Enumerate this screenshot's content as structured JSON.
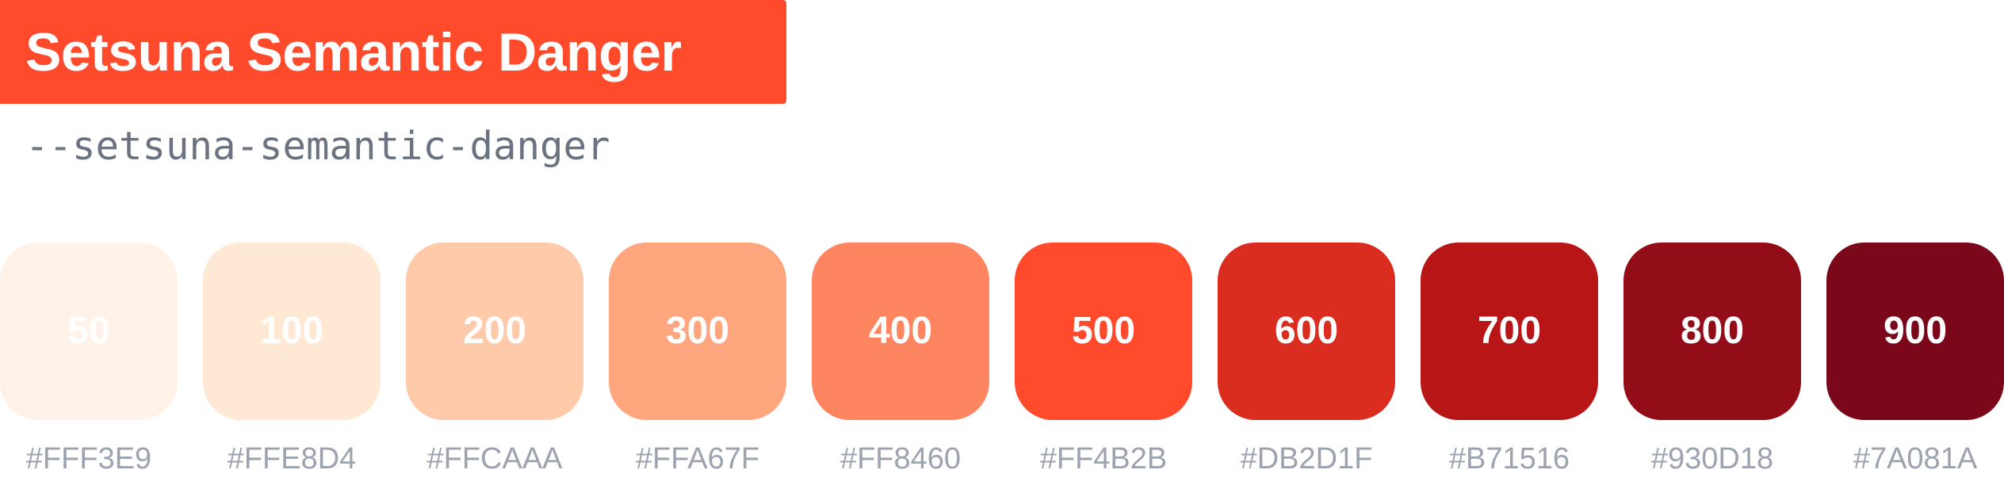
{
  "title": "Setsuna Semantic Danger",
  "token": "--setsuna-semantic-danger",
  "colors": {
    "title_bg": "#FF4B2B",
    "title_text": "#FFFFFF",
    "token_text": "#6B7280",
    "hex_text": "#9CA3AF"
  },
  "swatches": [
    {
      "label": "50",
      "hex": "#FFF3E9"
    },
    {
      "label": "100",
      "hex": "#FFE8D4"
    },
    {
      "label": "200",
      "hex": "#FFCAAA"
    },
    {
      "label": "300",
      "hex": "#FFA67F"
    },
    {
      "label": "400",
      "hex": "#FF8460"
    },
    {
      "label": "500",
      "hex": "#FF4B2B"
    },
    {
      "label": "600",
      "hex": "#DB2D1F"
    },
    {
      "label": "700",
      "hex": "#B71516"
    },
    {
      "label": "800",
      "hex": "#930D18"
    },
    {
      "label": "900",
      "hex": "#7A081A"
    }
  ]
}
